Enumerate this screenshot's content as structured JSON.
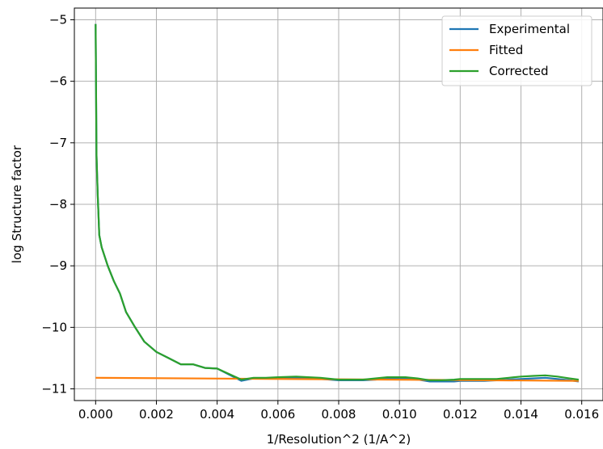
{
  "chart_data": {
    "type": "line",
    "xlabel": "1/Resolution^2 (1/A^2)",
    "ylabel": "log Structure factor",
    "xlim": [
      -0.0007,
      0.0167
    ],
    "ylim": [
      -11.19,
      -4.81
    ],
    "xticks": [
      "0.000",
      "0.002",
      "0.004",
      "0.006",
      "0.008",
      "0.010",
      "0.012",
      "0.014",
      "0.016"
    ],
    "xtick_values": [
      0,
      0.002,
      0.004,
      0.006,
      0.008,
      0.01,
      0.012,
      0.014,
      0.016
    ],
    "yticks": [
      "−5",
      "−6",
      "−7",
      "−8",
      "−9",
      "−10",
      "−11"
    ],
    "ytick_values": [
      -5,
      -6,
      -7,
      -8,
      -9,
      -10,
      -11
    ],
    "grid": true,
    "legend_position": "upper-right",
    "series": [
      {
        "name": "Experimental",
        "color": "#1f77b4",
        "x": [
          0,
          3e-05,
          7e-05,
          0.00012,
          0.0002,
          0.0004,
          0.0006,
          0.0008,
          0.001,
          0.0013,
          0.0016,
          0.002,
          0.0024,
          0.0028,
          0.0032,
          0.0036,
          0.004,
          0.0048,
          0.0052,
          0.0056,
          0.006,
          0.0066,
          0.007,
          0.0074,
          0.008,
          0.0084,
          0.0088,
          0.0092,
          0.0096,
          0.0102,
          0.0106,
          0.011,
          0.0114,
          0.0118,
          0.012,
          0.0124,
          0.0128,
          0.0132,
          0.0136,
          0.014,
          0.0144,
          0.0148,
          0.0152,
          0.0156,
          0.0159
        ],
        "y": [
          -5.07,
          -7.2,
          -7.85,
          -8.5,
          -8.7,
          -9.0,
          -9.25,
          -9.45,
          -9.75,
          -10.0,
          -10.23,
          -10.4,
          -10.5,
          -10.6,
          -10.6,
          -10.66,
          -10.67,
          -10.87,
          -10.83,
          -10.83,
          -10.83,
          -10.82,
          -10.83,
          -10.84,
          -10.86,
          -10.86,
          -10.86,
          -10.85,
          -10.83,
          -10.83,
          -10.85,
          -10.88,
          -10.88,
          -10.88,
          -10.87,
          -10.87,
          -10.87,
          -10.86,
          -10.85,
          -10.84,
          -10.83,
          -10.82,
          -10.84,
          -10.86,
          -10.88
        ]
      },
      {
        "name": "Fitted",
        "color": "#ff7f0e",
        "x": [
          0,
          0.0159
        ],
        "y": [
          -10.82,
          -10.87
        ]
      },
      {
        "name": "Corrected",
        "color": "#2ca02c",
        "x": [
          0,
          3e-05,
          7e-05,
          0.00012,
          0.0002,
          0.0004,
          0.0006,
          0.0008,
          0.001,
          0.0013,
          0.0016,
          0.002,
          0.0024,
          0.0028,
          0.0032,
          0.0036,
          0.004,
          0.0048,
          0.0052,
          0.0056,
          0.006,
          0.0066,
          0.007,
          0.0074,
          0.008,
          0.0084,
          0.0088,
          0.0092,
          0.0096,
          0.0102,
          0.0106,
          0.011,
          0.0114,
          0.0118,
          0.012,
          0.0124,
          0.0128,
          0.0132,
          0.0136,
          0.014,
          0.0144,
          0.0148,
          0.0152,
          0.0156,
          0.0159
        ],
        "y": [
          -5.07,
          -7.2,
          -7.85,
          -8.5,
          -8.7,
          -9.0,
          -9.25,
          -9.45,
          -9.75,
          -10.0,
          -10.23,
          -10.4,
          -10.5,
          -10.6,
          -10.6,
          -10.66,
          -10.67,
          -10.85,
          -10.82,
          -10.82,
          -10.81,
          -10.8,
          -10.81,
          -10.82,
          -10.85,
          -10.85,
          -10.85,
          -10.83,
          -10.81,
          -10.81,
          -10.83,
          -10.86,
          -10.86,
          -10.85,
          -10.84,
          -10.84,
          -10.84,
          -10.84,
          -10.82,
          -10.8,
          -10.79,
          -10.78,
          -10.8,
          -10.83,
          -10.85
        ]
      }
    ]
  }
}
